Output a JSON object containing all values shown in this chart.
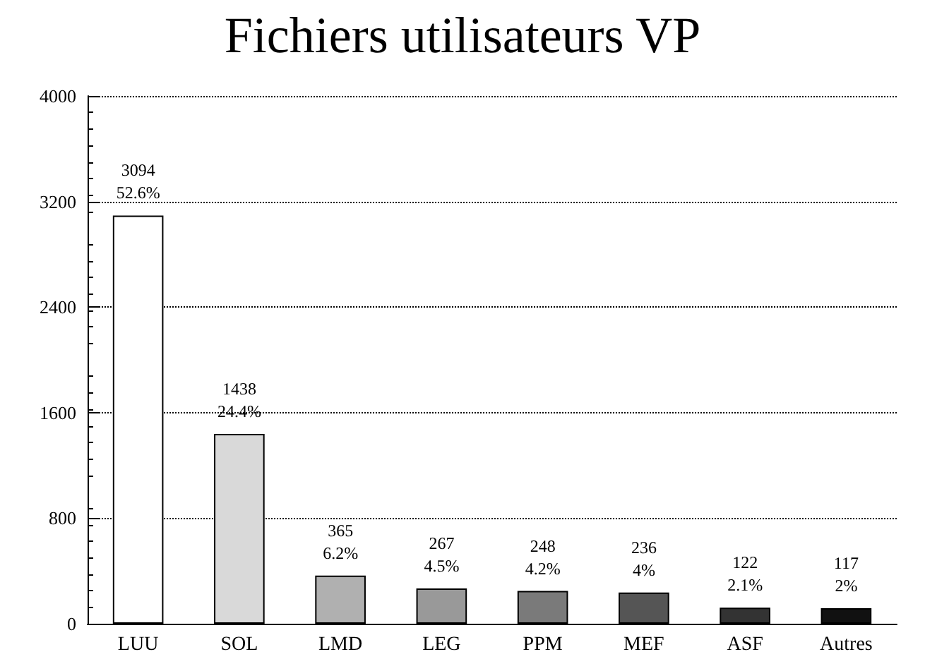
{
  "chart_data": {
    "type": "bar",
    "title": "Fichiers utilisateurs VP",
    "categories": [
      "LUU",
      "SOL",
      "LMD",
      "LEG",
      "PPM",
      "MEF",
      "ASF",
      "Autres"
    ],
    "values": [
      3094,
      1438,
      365,
      267,
      248,
      236,
      122,
      117
    ],
    "colors": [
      "#ffffff",
      "#d9d9d9",
      "#b0b0b0",
      "#999999",
      "#7a7a7a",
      "#555555",
      "#333333",
      "#111111"
    ],
    "value_labels": [
      "3094\n52.6%",
      "1438\n24.4%",
      "365\n6.2%",
      "267\n4.5%",
      "248\n4.2%",
      "236\n4%",
      "122\n2.1%",
      "117\n2%"
    ],
    "ylim": [
      0,
      4000
    ],
    "yticks": [
      0,
      800,
      1600,
      2400,
      3200,
      4000
    ],
    "grid": "y"
  }
}
